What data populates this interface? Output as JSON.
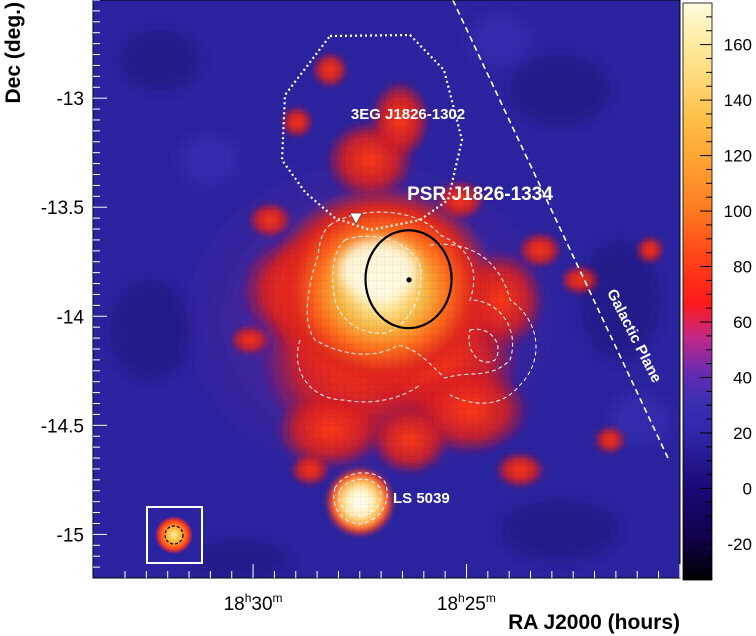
{
  "chart_data": {
    "type": "heatmap",
    "xlabel": "RA J2000 (hours)",
    "ylabel": "Dec (deg.)",
    "x_ticks": [
      {
        "ra": 18.5,
        "h": "18",
        "m": "30"
      },
      {
        "ra": 18.4167,
        "h": "18",
        "m": "25"
      }
    ],
    "y_ticks": [
      -13,
      -13.5,
      -14,
      -14.5,
      -15
    ],
    "xlim": [
      18.5625,
      18.3333
    ],
    "ylim": [
      -15.2,
      -12.55
    ],
    "colorbar": {
      "ticks": [
        -20,
        0,
        20,
        40,
        60,
        80,
        100,
        120,
        140,
        160
      ],
      "range": [
        -33,
        175
      ]
    },
    "sources": [
      {
        "label": "PSR J1826-1334",
        "ra": 18.4391,
        "dec": -13.833,
        "marker": "point"
      },
      {
        "label": "3EG J1826-1302",
        "ra": 18.4391,
        "dec": -13.04,
        "marker": "dotted-contour"
      },
      {
        "label": "LS 5039",
        "ra": 18.4461,
        "dec": -14.83,
        "marker": "none"
      }
    ],
    "emission_peak": {
      "ra": 18.4476,
      "dec": -13.72
    },
    "fit_ellipse": {
      "ra": 18.4393,
      "dec": -13.83,
      "sigma_ra_deg": 0.24,
      "sigma_dec_deg": 0.22
    },
    "triangle_marker": {
      "ra": 18.4598,
      "dec": -13.55
    },
    "galactic_plane": {
      "label": "Galactic Plane",
      "from": {
        "ra": 18.422,
        "dec": -12.55
      },
      "to": {
        "ra": 18.338,
        "dec": -14.65
      }
    },
    "psf_inset": true
  },
  "colors": {
    "background": "#2b24a0",
    "ellipse": "#000000",
    "annotation": "#ffffff"
  }
}
